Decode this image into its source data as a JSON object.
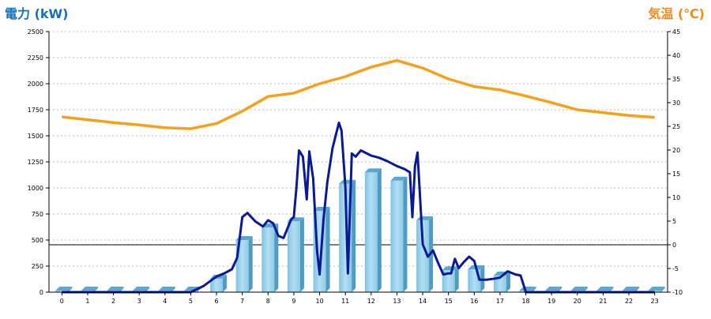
{
  "chart_data": {
    "type": "bar",
    "left_axis_title": "電力 (kW)",
    "right_axis_title": "気温 (℃)",
    "left_ylim": [
      0,
      2500
    ],
    "left_ticks": [
      0,
      250,
      500,
      750,
      1000,
      1250,
      1500,
      1750,
      2000,
      2250,
      2500
    ],
    "right_ylim": [
      -10,
      45
    ],
    "right_ticks": [
      -10,
      -5,
      0,
      5,
      10,
      15,
      20,
      25,
      30,
      35,
      40,
      45
    ],
    "categories": [
      0,
      1,
      2,
      3,
      4,
      5,
      6,
      7,
      8,
      9,
      10,
      11,
      12,
      13,
      14,
      15,
      16,
      17,
      18,
      19,
      20,
      21,
      22,
      23
    ],
    "grid": true,
    "zero_line_temperature": 0,
    "series": [
      {
        "type": "bar",
        "axis": "left",
        "color": "#8cc9e6",
        "values": [
          0,
          0,
          0,
          0,
          0,
          0,
          130,
          500,
          620,
          680,
          780,
          1040,
          1150,
          1070,
          690,
          210,
          220,
          160,
          15,
          0,
          0,
          0,
          0,
          0
        ]
      },
      {
        "type": "line",
        "axis": "left",
        "color": "#0a1a96",
        "x": [
          0,
          1,
          2,
          3,
          4,
          5,
          5.5,
          6,
          6.3,
          6.6,
          6.8,
          7.0,
          7.2,
          7.5,
          7.8,
          8.0,
          8.2,
          8.4,
          8.6,
          8.9,
          9.0,
          9.1,
          9.2,
          9.35,
          9.5,
          9.6,
          9.75,
          9.9,
          10.0,
          10.15,
          10.3,
          10.5,
          10.75,
          10.85,
          11.0,
          11.1,
          11.25,
          11.4,
          11.6,
          12.0,
          12.3,
          12.6,
          13.0,
          13.3,
          13.5,
          13.6,
          13.7,
          13.8,
          14.0,
          14.2,
          14.4,
          14.6,
          14.8,
          15.0,
          15.1,
          15.25,
          15.4,
          15.6,
          15.8,
          16.0,
          16.2,
          16.5,
          16.8,
          17.0,
          17.3,
          17.6,
          17.8,
          18.0,
          19,
          20,
          21,
          22,
          23
        ],
        "values": [
          0,
          0,
          0,
          0,
          0,
          0,
          60,
          150,
          180,
          220,
          330,
          720,
          760,
          680,
          630,
          690,
          660,
          540,
          520,
          700,
          720,
          1000,
          1360,
          1300,
          890,
          1350,
          1090,
          400,
          170,
          700,
          1060,
          1380,
          1625,
          1550,
          1010,
          180,
          1330,
          1300,
          1360,
          1310,
          1290,
          1260,
          1210,
          1180,
          1150,
          720,
          1210,
          1340,
          460,
          340,
          400,
          280,
          170,
          180,
          180,
          320,
          230,
          290,
          340,
          300,
          120,
          120,
          130,
          140,
          200,
          170,
          160,
          0,
          0,
          0,
          0,
          0,
          0
        ]
      },
      {
        "type": "line",
        "axis": "right",
        "color": "#f5a11d",
        "values": [
          27.0,
          26.4,
          25.8,
          25.3,
          24.7,
          24.5,
          25.6,
          28.2,
          31.3,
          32.0,
          34.0,
          35.5,
          37.5,
          38.9,
          37.3,
          35.0,
          33.4,
          32.7,
          31.4,
          30.0,
          28.5,
          27.9,
          27.3,
          26.9
        ]
      }
    ]
  }
}
